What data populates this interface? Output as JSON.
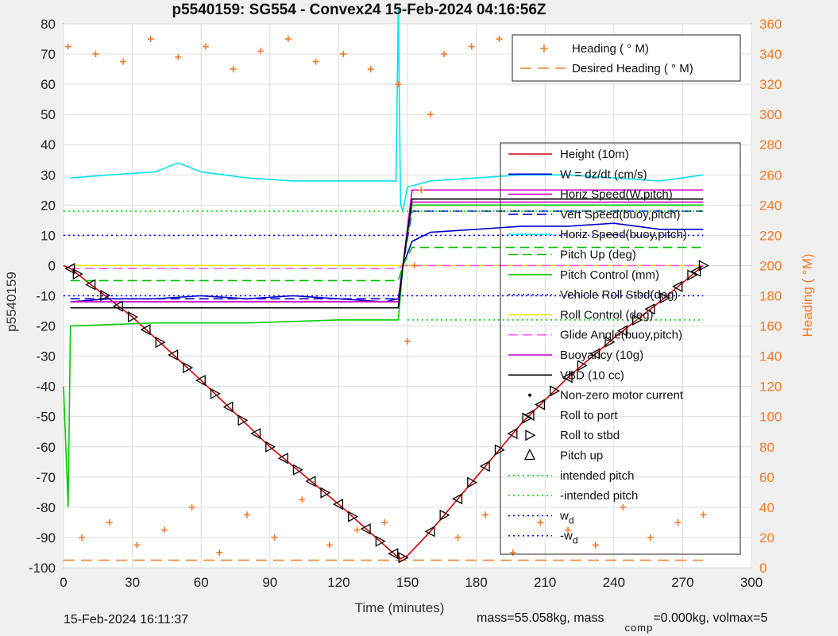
{
  "chart_data": {
    "type": "line",
    "title": "p5540159: SG554 - Convex24 15-Feb-2024 04:16:56Z",
    "xlabel": "Time (minutes)",
    "ylabel": "p5540159",
    "y2label": "Heading (  °M)",
    "xlim": [
      0,
      300
    ],
    "ylim": [
      -100,
      80
    ],
    "y2lim": [
      0,
      360
    ],
    "x_ticks": [
      0,
      30,
      60,
      90,
      120,
      150,
      180,
      210,
      240,
      270,
      300
    ],
    "y_ticks": [
      80,
      70,
      60,
      50,
      40,
      30,
      20,
      10,
      0,
      -10,
      -20,
      -30,
      -40,
      -50,
      -60,
      -70,
      -80,
      -90,
      -100
    ],
    "y2_ticks": [
      360,
      340,
      320,
      300,
      280,
      260,
      240,
      220,
      200,
      180,
      160,
      140,
      120,
      100,
      80,
      60,
      40,
      20,
      0
    ],
    "grid": true,
    "legend_top": {
      "placement": "top-right",
      "entries": [
        {
          "name": "Heading (  ° M)",
          "color": "#f47a26",
          "style": "plus"
        },
        {
          "name": "Desired Heading (  ° M)",
          "color": "#f47a26",
          "style": "dash"
        }
      ]
    },
    "legend_main": {
      "placement": "right",
      "entries": [
        {
          "name": "Height (10m)",
          "color": "#d40000",
          "style": "solid"
        },
        {
          "name": "W = dz/dt (cm/s)",
          "color": "#0000cc",
          "style": "solid"
        },
        {
          "name": "Horiz Speed(W,pitch)",
          "color": "#cc00cc",
          "style": "solid"
        },
        {
          "name": "Vert Speed(buoy,pitch)",
          "color": "#0000cc",
          "style": "dash"
        },
        {
          "name": "Horiz Speed(buoy,pitch)",
          "color": "#00e5ee",
          "style": "solid"
        },
        {
          "name": "Pitch Up (deg)",
          "color": "#00c000",
          "style": "dash"
        },
        {
          "name": "Pitch Control (mm)",
          "color": "#00cc00",
          "style": "solid"
        },
        {
          "name": "Vehicle Roll Stbd(deg)",
          "color": "#0000ff",
          "style": "dot"
        },
        {
          "name": "Roll Control (deg)",
          "color": "#e8e800",
          "style": "solid"
        },
        {
          "name": "Glide Angle(buoy,pitch)",
          "color": "#ff55ff",
          "style": "dash"
        },
        {
          "name": "Buoyancy (10g)",
          "color": "#cc00cc",
          "style": "solid"
        },
        {
          "name": "VBD (10 cc)",
          "color": "#000000",
          "style": "solid"
        },
        {
          "name": "Non-zero motor current",
          "color": "#000000",
          "style": "point"
        },
        {
          "name": "Roll to port",
          "color": "#000000",
          "style": "triangle-left"
        },
        {
          "name": "Roll to stbd",
          "color": "#000000",
          "style": "triangle-right"
        },
        {
          "name": "Pitch up",
          "color": "#000000",
          "style": "triangle-up"
        },
        {
          "name": "intended pitch",
          "color": "#00dd00",
          "style": "dot"
        },
        {
          "name": "-intended pitch",
          "color": "#00dd00",
          "style": "dot"
        },
        {
          "name": "w_d",
          "color": "#0000ff",
          "style": "dot"
        },
        {
          "name": "-w_d",
          "color": "#0000ff",
          "style": "dot"
        }
      ]
    },
    "series": [
      {
        "name": "Height (10m)",
        "color": "#d40000",
        "x": [
          0,
          3,
          30,
          60,
          90,
          120,
          145,
          147,
          150,
          160,
          180,
          200,
          220,
          240,
          260,
          279
        ],
        "y": [
          0,
          -1,
          -17,
          -38,
          -60,
          -79,
          -96,
          -97,
          -96,
          -88,
          -70,
          -52,
          -37,
          -24,
          -12,
          0
        ]
      },
      {
        "name": "W = dz/dt (cm/s)",
        "color": "#0000cc",
        "x": [
          3,
          20,
          40,
          60,
          80,
          100,
          120,
          140,
          146,
          148,
          152,
          160,
          180,
          200,
          220,
          240,
          260,
          279
        ],
        "y": [
          -12,
          -11,
          -11,
          -10,
          -11,
          -10,
          -11,
          -12,
          -11,
          0,
          8,
          11,
          12,
          13,
          13,
          14,
          12,
          12
        ]
      },
      {
        "name": "Horiz Speed(W,pitch)",
        "color": "#cc00cc",
        "x": [
          3,
          30,
          60,
          90,
          120,
          146,
          148,
          152,
          180,
          210,
          240,
          279
        ],
        "y": [
          -12,
          -12,
          -12,
          -12,
          -12,
          -12,
          0,
          21,
          21,
          21,
          21,
          21
        ]
      },
      {
        "name": "Vert Speed(buoy,pitch)",
        "color": "#0000cc",
        "x": [
          3,
          146,
          148,
          152,
          279
        ],
        "y": [
          -11,
          -11,
          0,
          18,
          18
        ]
      },
      {
        "name": "Horiz Speed(buoy,pitch)",
        "color": "#00e5ee",
        "x": [
          3,
          20,
          40,
          50,
          60,
          80,
          100,
          120,
          140,
          145,
          146,
          147,
          148,
          150,
          160,
          180,
          200,
          220,
          240,
          260,
          279
        ],
        "y": [
          29,
          30,
          31,
          34,
          31,
          29,
          28,
          28,
          28,
          28,
          85,
          20,
          18,
          26,
          28,
          29,
          30,
          30,
          29,
          28,
          30
        ]
      },
      {
        "name": "Pitch Up (deg)",
        "color": "#00c000",
        "x": [
          3,
          146,
          148,
          152,
          279
        ],
        "y": [
          -5,
          -5,
          0,
          6,
          6
        ]
      },
      {
        "name": "Pitch Control (mm)",
        "color": "#00cc00",
        "x": [
          0,
          2,
          3,
          40,
          80,
          120,
          146,
          148,
          152,
          180,
          220,
          279
        ],
        "y": [
          -40,
          -80,
          -20,
          -19,
          -19,
          -18,
          -18,
          0,
          20,
          20,
          20,
          20
        ]
      },
      {
        "name": "Roll Control (deg)",
        "color": "#e8e800",
        "x": [
          3,
          60,
          120,
          146,
          148,
          200,
          279
        ],
        "y": [
          0,
          0,
          0,
          0,
          0,
          0,
          0
        ]
      },
      {
        "name": "Glide Angle(buoy,pitch)",
        "color": "#ff55ff",
        "x": [
          3,
          146,
          148,
          279
        ],
        "y": [
          -1,
          -1,
          0,
          0
        ]
      },
      {
        "name": "Buoyancy (10g)",
        "color": "#cc00cc",
        "x": [
          3,
          146,
          148,
          152,
          279
        ],
        "y": [
          -12,
          -12,
          0,
          25,
          25
        ]
      },
      {
        "name": "VBD (10 cc)",
        "color": "#000000",
        "x": [
          3,
          146,
          148,
          152,
          279
        ],
        "y": [
          -14,
          -14,
          0,
          22,
          22
        ]
      },
      {
        "name": "intended pitch",
        "color": "#00dd00",
        "x": [
          0,
          279
        ],
        "y": [
          18,
          18
        ]
      },
      {
        "name": "-intended pitch",
        "color": "#00dd00",
        "x": [
          150,
          279
        ],
        "y": [
          -18,
          -18
        ]
      },
      {
        "name": "w_d",
        "color": "#0000ff",
        "x": [
          0,
          279
        ],
        "y": [
          10,
          10
        ]
      },
      {
        "name": "-w_d",
        "color": "#0000ff",
        "x": [
          0,
          279
        ],
        "y": [
          -10,
          -10
        ]
      }
    ],
    "heading_series": {
      "name": "Heading (  ° M)",
      "color": "#f47a26",
      "axis": "right",
      "x": [
        2,
        8,
        14,
        20,
        26,
        32,
        38,
        44,
        50,
        56,
        62,
        68,
        74,
        80,
        86,
        92,
        98,
        104,
        110,
        116,
        122,
        128,
        134,
        140,
        146,
        150,
        153,
        156,
        160,
        166,
        172,
        178,
        184,
        190,
        196,
        202,
        208,
        214,
        220,
        226,
        232,
        238,
        244,
        250,
        256,
        262,
        268,
        274,
        279
      ],
      "y": [
        345,
        20,
        340,
        30,
        335,
        15,
        350,
        25,
        338,
        40,
        345,
        10,
        330,
        35,
        342,
        20,
        350,
        45,
        335,
        15,
        340,
        25,
        330,
        30,
        320,
        150,
        200,
        250,
        300,
        340,
        20,
        345,
        35,
        350,
        10,
        340,
        30,
        345,
        25,
        350,
        15,
        335,
        40,
        340,
        20,
        350,
        30,
        345,
        35
      ]
    },
    "desired_heading": {
      "name": "Desired Heading (  ° M)",
      "color": "#f47a26",
      "axis": "right",
      "x": [
        0,
        279
      ],
      "y": [
        5,
        5
      ]
    },
    "markers": {
      "roll_to_port_x": [
        3,
        12,
        24,
        36,
        48,
        60,
        72,
        84,
        96,
        108,
        120,
        132,
        144,
        160,
        172,
        184,
        196,
        208,
        220,
        232,
        244,
        256,
        268,
        276
      ],
      "roll_to_stbd_x": [
        6,
        18,
        30,
        42,
        54,
        66,
        78,
        90,
        102,
        114,
        126,
        138,
        148,
        166,
        178,
        190,
        202,
        214,
        226,
        238,
        250,
        262,
        274,
        279
      ]
    },
    "annotations": {
      "footer_left": "15-Feb-2024 16:11:37",
      "footer_mass": "mass=55.058kg, mass",
      "footer_sub": "comp",
      "footer_rest": "=0.000kg, volmax=5"
    }
  }
}
